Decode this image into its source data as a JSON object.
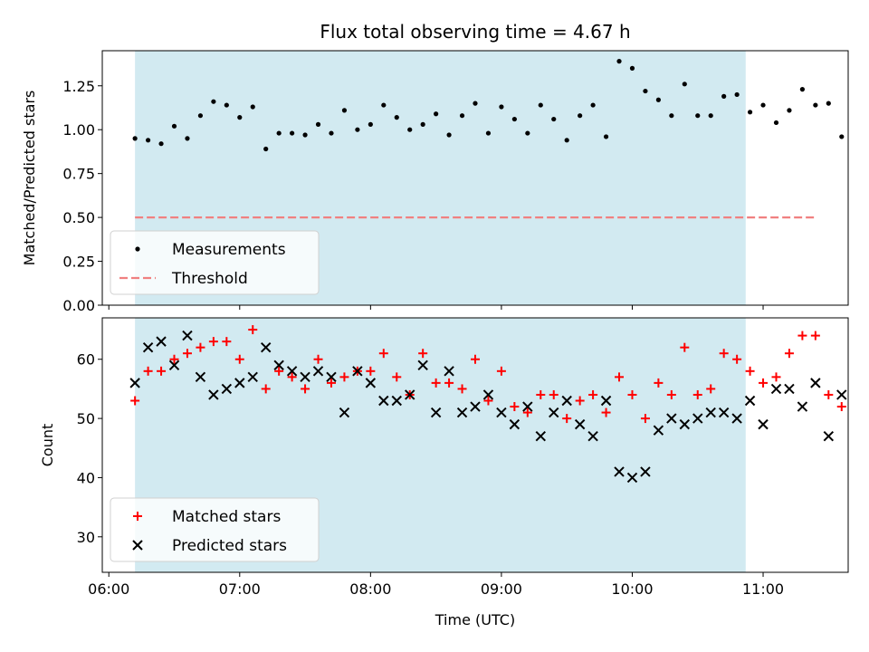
{
  "chart_data": [
    {
      "type": "scatter",
      "title": "Flux total observing time = 4.67 h",
      "ylabel": "Matched/Predicted stars",
      "xlabel": "",
      "x_unit": "time (UTC, HH:MM)",
      "ylim": [
        0,
        1.45
      ],
      "yticks": [
        "0.00",
        "0.25",
        "0.50",
        "0.75",
        "1.00",
        "1.25"
      ],
      "shaded_region": {
        "start": "06:12",
        "end": "10:52",
        "color": "#add8e6"
      },
      "legend": {
        "position": "lower-left",
        "entries": [
          "Measurements",
          "Threshold"
        ]
      },
      "series": [
        {
          "name": "Measurements",
          "marker": "dot",
          "color": "#000000",
          "x": [
            "06:12",
            "06:18",
            "06:24",
            "06:30",
            "06:36",
            "06:42",
            "06:48",
            "06:54",
            "07:00",
            "07:06",
            "07:12",
            "07:18",
            "07:24",
            "07:30",
            "07:36",
            "07:42",
            "07:48",
            "07:54",
            "08:00",
            "08:06",
            "08:12",
            "08:18",
            "08:24",
            "08:30",
            "08:36",
            "08:42",
            "08:48",
            "08:54",
            "09:00",
            "09:06",
            "09:12",
            "09:18",
            "09:24",
            "09:30",
            "09:36",
            "09:42",
            "09:48",
            "09:54",
            "10:00",
            "10:06",
            "10:12",
            "10:18",
            "10:24",
            "10:30",
            "10:36",
            "10:42",
            "10:48",
            "10:54",
            "11:00",
            "11:06",
            "11:12",
            "11:18",
            "11:24",
            "11:30",
            "11:36"
          ],
          "y": [
            0.95,
            0.94,
            0.92,
            1.02,
            0.95,
            1.08,
            1.16,
            1.14,
            1.07,
            1.13,
            0.89,
            0.98,
            0.98,
            0.97,
            1.03,
            0.98,
            1.11,
            1.0,
            1.03,
            1.14,
            1.07,
            1.0,
            1.03,
            1.09,
            0.97,
            1.08,
            1.15,
            0.98,
            1.13,
            1.06,
            0.98,
            1.14,
            1.06,
            0.94,
            1.08,
            1.14,
            0.96,
            1.39,
            1.35,
            1.22,
            1.17,
            1.08,
            1.26,
            1.08,
            1.08,
            1.19,
            1.2,
            1.1,
            1.14,
            1.04,
            1.11,
            1.23,
            1.14,
            1.15,
            0.96
          ]
        },
        {
          "name": "Threshold",
          "marker": "dashed-line",
          "color": "#f08080",
          "x": [
            "06:12",
            "11:24"
          ],
          "y": [
            0.5,
            0.5
          ]
        }
      ]
    },
    {
      "type": "scatter",
      "title": "",
      "xlabel": "Time (UTC)",
      "ylabel": "Count",
      "ylim": [
        24,
        67
      ],
      "yticks": [
        "30",
        "40",
        "50",
        "60"
      ],
      "xticks": [
        "06:00",
        "07:00",
        "08:00",
        "09:00",
        "10:00",
        "11:00"
      ],
      "shaded_region": {
        "start": "06:12",
        "end": "10:52",
        "color": "#add8e6"
      },
      "legend": {
        "position": "lower-left",
        "entries": [
          "Matched stars",
          "Predicted stars"
        ]
      },
      "series": [
        {
          "name": "Matched stars",
          "marker": "plus",
          "color": "#ff0000",
          "x": [
            "06:12",
            "06:18",
            "06:24",
            "06:30",
            "06:36",
            "06:42",
            "06:48",
            "06:54",
            "07:00",
            "07:06",
            "07:12",
            "07:18",
            "07:24",
            "07:30",
            "07:36",
            "07:42",
            "07:48",
            "07:54",
            "08:00",
            "08:06",
            "08:12",
            "08:18",
            "08:24",
            "08:30",
            "08:36",
            "08:42",
            "08:48",
            "08:54",
            "09:00",
            "09:06",
            "09:12",
            "09:18",
            "09:24",
            "09:30",
            "09:36",
            "09:42",
            "09:48",
            "09:54",
            "10:00",
            "10:06",
            "10:12",
            "10:18",
            "10:24",
            "10:30",
            "10:36",
            "10:42",
            "10:48",
            "10:54",
            "11:00",
            "11:06",
            "11:12",
            "11:18",
            "11:24",
            "11:30",
            "11:36"
          ],
          "y": [
            53,
            58,
            58,
            60,
            61,
            62,
            63,
            63,
            60,
            65,
            55,
            58,
            57,
            55,
            60,
            56,
            57,
            58,
            58,
            61,
            57,
            54,
            61,
            56,
            56,
            55,
            60,
            53,
            58,
            52,
            51,
            54,
            54,
            50,
            53,
            54,
            51,
            57,
            54,
            50,
            56,
            54,
            62,
            54,
            55,
            61,
            60,
            58,
            56,
            57,
            61,
            64,
            64,
            54,
            52
          ]
        },
        {
          "name": "Predicted stars",
          "marker": "x",
          "color": "#000000",
          "x": [
            "06:12",
            "06:18",
            "06:24",
            "06:30",
            "06:36",
            "06:42",
            "06:48",
            "06:54",
            "07:00",
            "07:06",
            "07:12",
            "07:18",
            "07:24",
            "07:30",
            "07:36",
            "07:42",
            "07:48",
            "07:54",
            "08:00",
            "08:06",
            "08:12",
            "08:18",
            "08:24",
            "08:30",
            "08:36",
            "08:42",
            "08:48",
            "08:54",
            "09:00",
            "09:06",
            "09:12",
            "09:18",
            "09:24",
            "09:30",
            "09:36",
            "09:42",
            "09:48",
            "09:54",
            "10:00",
            "10:06",
            "10:12",
            "10:18",
            "10:24",
            "10:30",
            "10:36",
            "10:42",
            "10:48",
            "10:54",
            "11:00",
            "11:06",
            "11:12",
            "11:18",
            "11:24",
            "11:30",
            "11:36"
          ],
          "y": [
            56,
            62,
            63,
            59,
            64,
            57,
            54,
            55,
            56,
            57,
            62,
            59,
            58,
            57,
            58,
            57,
            51,
            58,
            56,
            53,
            53,
            54,
            59,
            51,
            58,
            51,
            52,
            54,
            51,
            49,
            52,
            47,
            51,
            53,
            49,
            47,
            53,
            41,
            40,
            41,
            48,
            50,
            49,
            50,
            51,
            51,
            50,
            53,
            49,
            55,
            55,
            52,
            56,
            47,
            54
          ]
        }
      ]
    }
  ]
}
